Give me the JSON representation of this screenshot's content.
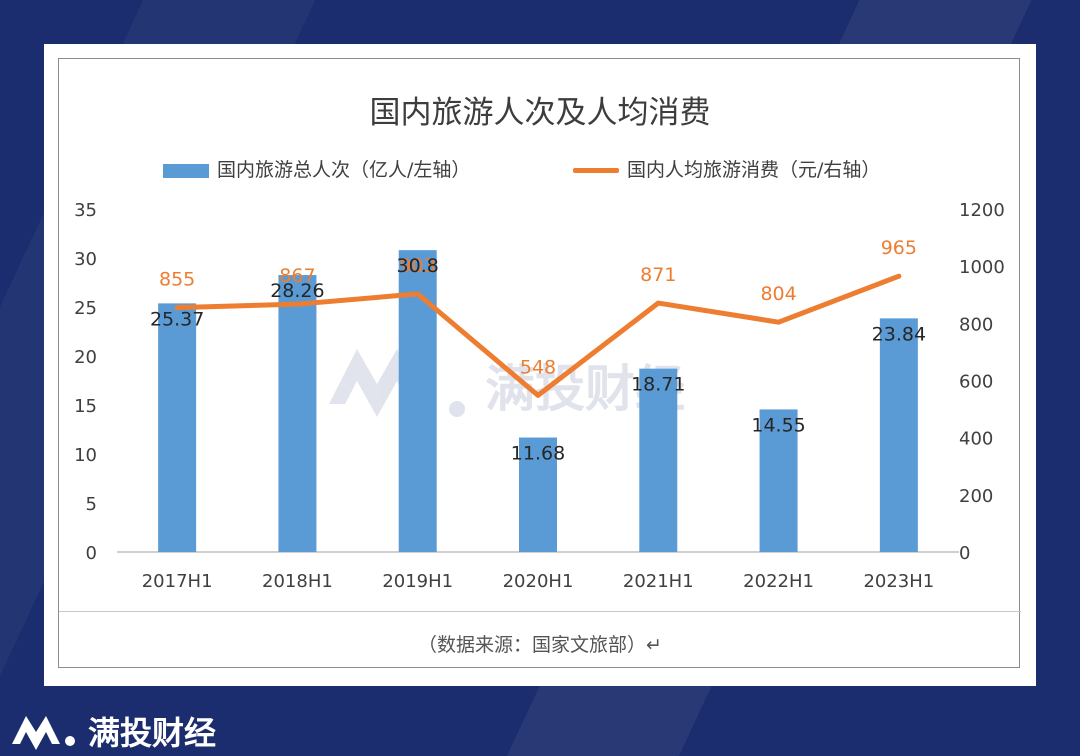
{
  "brand": {
    "name": "满投财经"
  },
  "chart_data": {
    "type": "bar",
    "title": "国内旅游人次及人均消费",
    "categories": [
      "2017H1",
      "2018H1",
      "2019H1",
      "2020H1",
      "2021H1",
      "2022H1",
      "2023H1"
    ],
    "series": [
      {
        "name": "国内旅游总人次（亿人/左轴）",
        "type": "bar",
        "axis": "left",
        "color": "#5b9bd5",
        "values": [
          25.37,
          28.26,
          30.8,
          11.68,
          18.71,
          14.55,
          23.84
        ],
        "labels": [
          "25.37",
          "28.26",
          "30.8",
          "11.68",
          "18.71",
          "14.55",
          "23.84"
        ]
      },
      {
        "name": "国内人均旅游消费（元/右轴）",
        "type": "line",
        "axis": "right",
        "color": "#ed7d31",
        "values": [
          855,
          867,
          903,
          548,
          871,
          804,
          965
        ],
        "labels": [
          "855",
          "867",
          "903",
          "548",
          "871",
          "804",
          "965"
        ]
      }
    ],
    "y_left": {
      "ylim": [
        0,
        35
      ],
      "ticks": [
        "0",
        "5",
        "10",
        "15",
        "20",
        "25",
        "30",
        "35"
      ]
    },
    "y_right": {
      "ylim": [
        0,
        1200
      ],
      "ticks": [
        "0",
        "200",
        "400",
        "600",
        "800",
        "1000",
        "1200"
      ]
    },
    "legend_position": "top",
    "grid": false
  },
  "source": "（数据来源：国家文旅部）↵"
}
